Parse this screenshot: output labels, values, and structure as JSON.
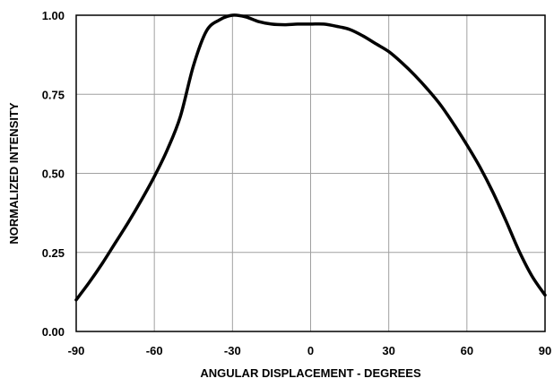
{
  "chart_data": {
    "type": "line",
    "title": "",
    "xlabel": "ANGULAR DISPLACEMENT   - DEGREES",
    "ylabel": "NORMALIZED INTENSITY",
    "xlim": [
      -90,
      90
    ],
    "ylim": [
      0,
      1
    ],
    "x_ticks": [
      -90,
      -60,
      -30,
      0,
      30,
      60,
      90
    ],
    "x_tick_labels": [
      "-90",
      "-60",
      "-30",
      "0",
      "30",
      "60",
      "90"
    ],
    "y_ticks": [
      0,
      0.25,
      0.5,
      0.75,
      1.0
    ],
    "y_tick_labels": [
      "0.00",
      "0.25",
      "0.50",
      "0.75",
      "1.00"
    ],
    "grid": true,
    "legend": "none",
    "line_color": "#000000",
    "grid_color": "#a0a0a0",
    "series": [
      {
        "x": [
          -90,
          -85,
          -80,
          -75,
          -70,
          -65,
          -60,
          -55,
          -50,
          -45,
          -40,
          -35,
          -30,
          -25,
          -20,
          -15,
          -10,
          -5,
          0,
          5,
          10,
          15,
          20,
          25,
          30,
          35,
          40,
          45,
          50,
          55,
          60,
          65,
          70,
          75,
          80,
          85,
          90
        ],
        "y": [
          0.1,
          0.155,
          0.215,
          0.28,
          0.345,
          0.415,
          0.49,
          0.575,
          0.68,
          0.84,
          0.95,
          0.985,
          1.0,
          0.995,
          0.98,
          0.972,
          0.97,
          0.972,
          0.972,
          0.972,
          0.965,
          0.955,
          0.935,
          0.91,
          0.885,
          0.85,
          0.81,
          0.765,
          0.715,
          0.655,
          0.59,
          0.52,
          0.44,
          0.35,
          0.255,
          0.175,
          0.115
        ]
      }
    ]
  }
}
